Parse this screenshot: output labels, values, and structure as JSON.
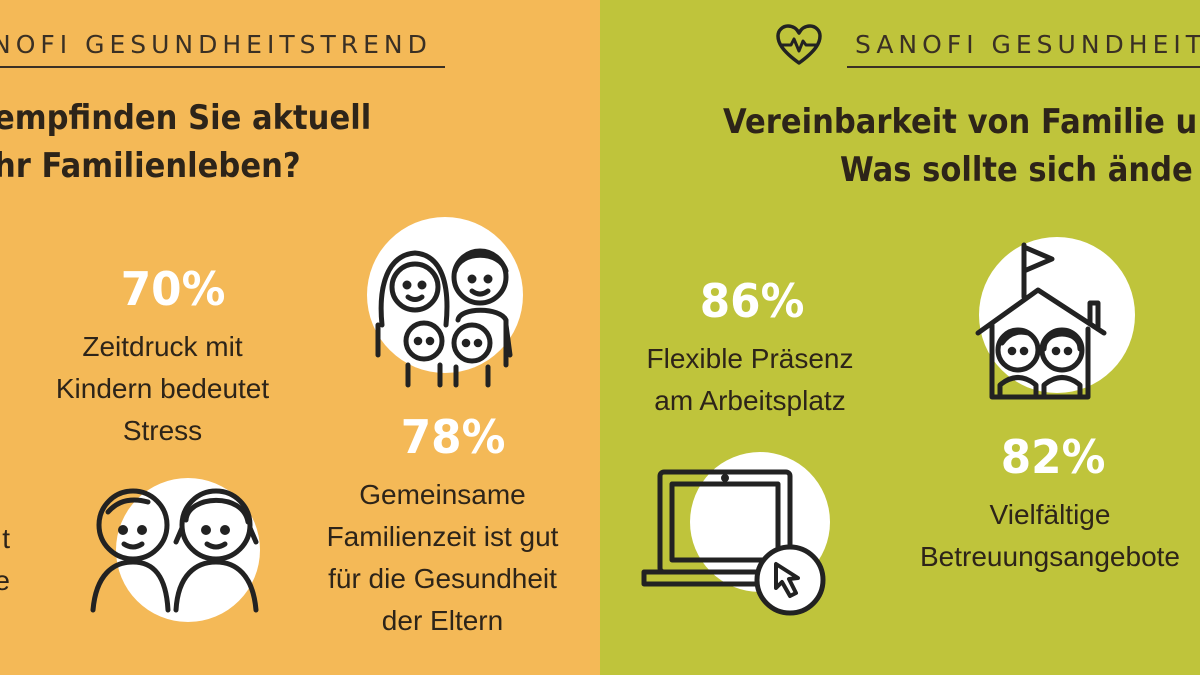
{
  "left": {
    "brand": "NOFI GESUNDHEITSTREND",
    "title_line1": "empfinden Sie aktuell",
    "title_line2": "hr Familienleben?",
    "stat1": {
      "percent": "70%",
      "line1": "Zeitdruck mit",
      "line2": "Kindern bedeutet",
      "line3": "Stress"
    },
    "stat2": {
      "percent": "78%",
      "line1": "Gemeinsame",
      "line2": "Familienzeit ist gut",
      "line3": "für die Gesundheit",
      "line4": "der Eltern"
    },
    "edge_text": {
      "line1": "t",
      "line2": "e"
    },
    "colors": {
      "background": "#f4b957",
      "accent": "#ffffff",
      "text": "#2d2419"
    }
  },
  "right": {
    "brand": "SANOFI GESUNDHEIT",
    "title_line1": "Vereinbarkeit von Familie u",
    "title_line2": "Was sollte sich ände",
    "stat1": {
      "percent": "86%",
      "line1": "Flexible Präsenz",
      "line2": "am Arbeitsplatz"
    },
    "stat2": {
      "percent": "82%",
      "line1": "Vielfältige",
      "line2": "Betreuungsangebote"
    },
    "colors": {
      "background": "#bfc43b",
      "accent": "#ffffff",
      "text": "#2d2419"
    }
  }
}
